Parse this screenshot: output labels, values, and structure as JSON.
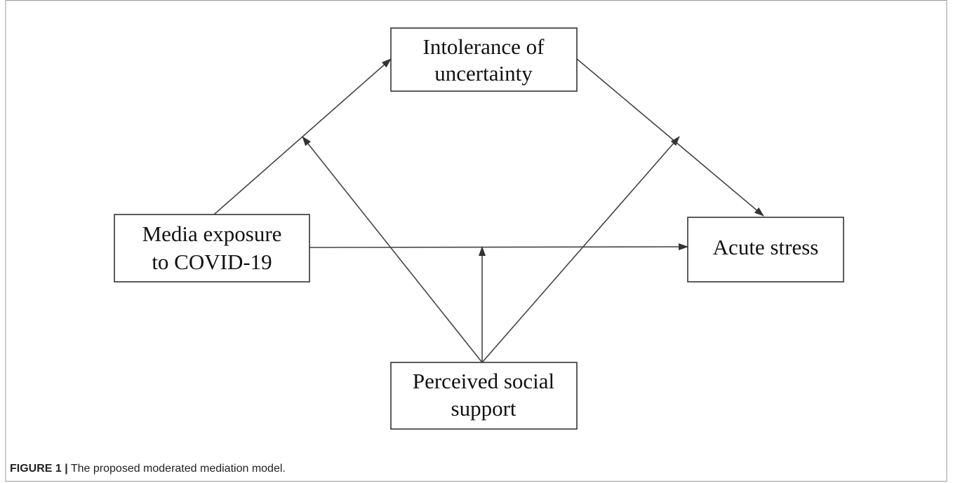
{
  "nodes": [
    {
      "label": [
        "Intolerance of",
        "uncertainty"
      ]
    },
    {
      "label": [
        "Media exposure",
        "to COVID-19"
      ]
    },
    {
      "label": [
        "Acute stress"
      ]
    },
    {
      "label": [
        "Perceived social",
        "support"
      ]
    }
  ],
  "caption": {
    "label": "FIGURE 1 |",
    "text": "The proposed moderated mediation model."
  }
}
